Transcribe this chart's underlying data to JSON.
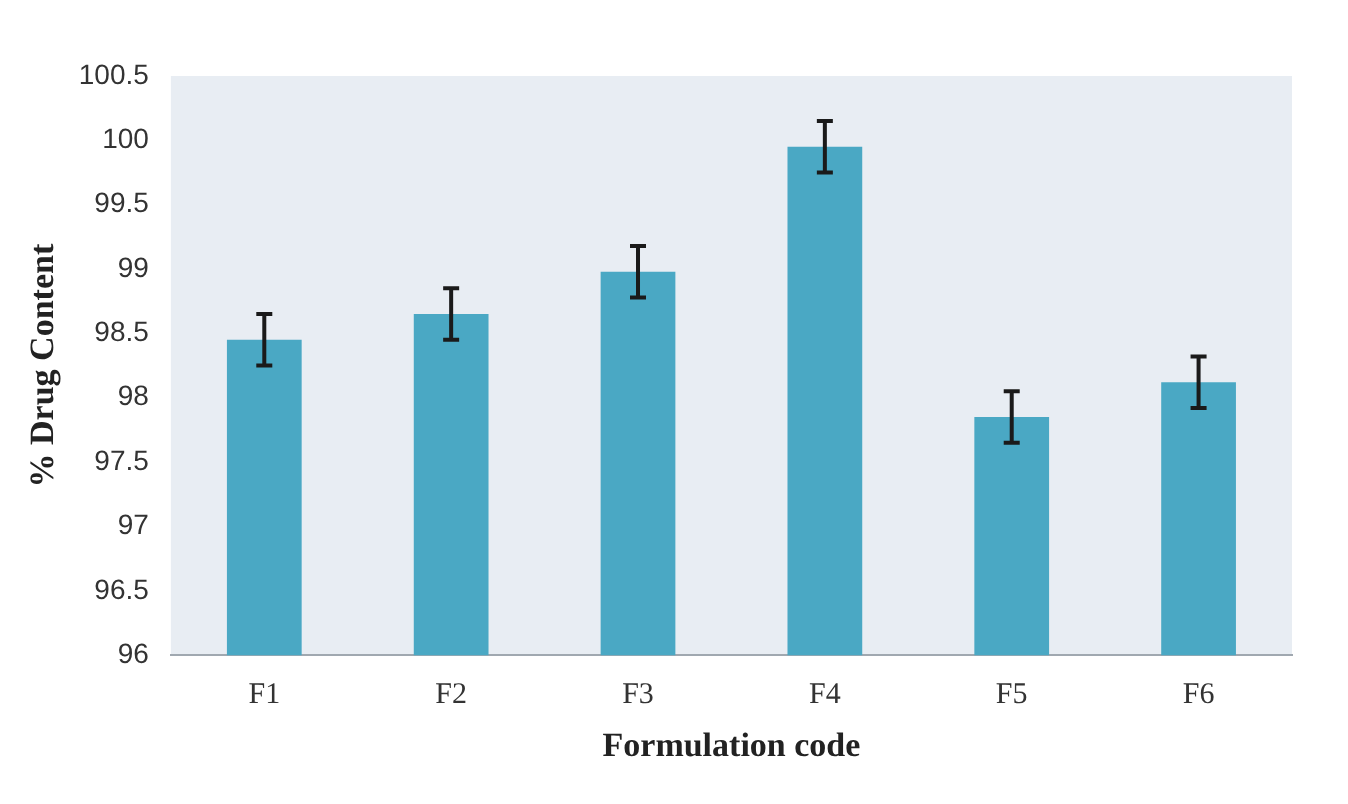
{
  "chart_data": {
    "type": "bar",
    "xlabel": "Formulation code",
    "ylabel": "% Drug Content",
    "categories": [
      "F1",
      "F2",
      "F3",
      "F4",
      "F5",
      "F6"
    ],
    "values": [
      98.45,
      98.65,
      98.98,
      99.95,
      97.85,
      98.12
    ],
    "errors": [
      0.2,
      0.2,
      0.2,
      0.2,
      0.2,
      0.2
    ],
    "color": "#4aa8c4",
    "ylim": [
      96,
      100.5
    ],
    "yticks": [
      96,
      96.5,
      97,
      97.5,
      98,
      98.5,
      99,
      99.5,
      100,
      100.5
    ],
    "grid": false,
    "legend": false
  }
}
